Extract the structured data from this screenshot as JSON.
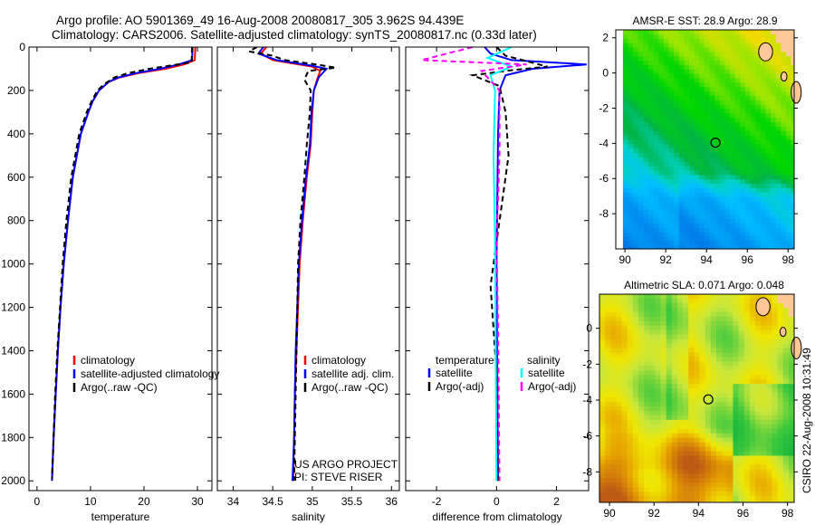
{
  "title": {
    "line1": "Argo profile: AO 5901369_49 16-Aug-2008 20080817_305 3.962S 94.439E",
    "line2": "Climatology: CARS2006. Satellite-adjusted climatology: synTS_20080817.nc (0.33d later)"
  },
  "side_stamp": "CSIRO 22-Aug-2008 10:31:49",
  "colors": {
    "climatology": "#ff0000",
    "satellite": "#0000ff",
    "argo": "#000000",
    "sal_satellite": "#00ffff",
    "sal_argo": "#ff00ff"
  },
  "chart_data": [
    {
      "type": "line",
      "xlabel": "temperature",
      "xlim": [
        -1.5,
        32.7
      ],
      "ylim": [
        0,
        2045
      ],
      "xticks": [
        0,
        10,
        20,
        30
      ],
      "yticks": [
        0,
        200,
        400,
        600,
        800,
        1000,
        1200,
        1400,
        1600,
        1800,
        2000
      ],
      "y_reversed": true,
      "legend": [
        "climatology",
        "satellite-adjusted climatology",
        "Argo(..raw -QC)"
      ],
      "series": [
        {
          "name": "climatology",
          "color": "#ff0000",
          "dash": false,
          "points": [
            [
              29.6,
              0
            ],
            [
              29.5,
              60
            ],
            [
              27.5,
              80
            ],
            [
              24,
              100
            ],
            [
              19,
              120
            ],
            [
              15.5,
              140
            ],
            [
              13.5,
              160
            ],
            [
              11.6,
              200
            ],
            [
              10.4,
              250
            ],
            [
              9.6,
              300
            ],
            [
              8.2,
              400
            ],
            [
              6.7,
              600
            ],
            [
              5.8,
              800
            ],
            [
              5.0,
              1000
            ],
            [
              4.4,
              1200
            ],
            [
              3.9,
              1400
            ],
            [
              3.5,
              1600
            ],
            [
              3.1,
              1800
            ],
            [
              2.8,
              2000
            ]
          ]
        },
        {
          "name": "satellite-adjusted climatology",
          "color": "#0000ff",
          "dash": false,
          "points": [
            [
              29.1,
              0
            ],
            [
              29.0,
              60
            ],
            [
              26.5,
              80
            ],
            [
              23,
              100
            ],
            [
              18.5,
              120
            ],
            [
              15.3,
              140
            ],
            [
              13.4,
              160
            ],
            [
              11.6,
              200
            ],
            [
              10.4,
              250
            ],
            [
              9.6,
              300
            ],
            [
              8.2,
              400
            ],
            [
              6.7,
              600
            ],
            [
              5.8,
              800
            ],
            [
              5.0,
              1000
            ],
            [
              4.4,
              1200
            ],
            [
              3.9,
              1400
            ],
            [
              3.5,
              1600
            ],
            [
              3.1,
              1800
            ],
            [
              2.8,
              2000
            ]
          ]
        },
        {
          "name": "Argo(..raw -QC)",
          "color": "#000000",
          "dash": true,
          "points": [
            [
              29.0,
              0
            ],
            [
              28.9,
              70
            ],
            [
              25,
              85
            ],
            [
              21,
              100
            ],
            [
              17,
              120
            ],
            [
              14.5,
              140
            ],
            [
              12.6,
              170
            ],
            [
              11.3,
              200
            ],
            [
              10.2,
              250
            ],
            [
              9.3,
              300
            ],
            [
              7.9,
              400
            ],
            [
              6.4,
              600
            ],
            [
              5.5,
              800
            ],
            [
              4.8,
              1000
            ],
            [
              4.3,
              1200
            ],
            [
              3.8,
              1400
            ],
            [
              3.4,
              1600
            ],
            [
              3.1,
              1800
            ],
            [
              2.8,
              1990
            ]
          ]
        }
      ]
    },
    {
      "type": "line",
      "xlabel": "salinity",
      "xlim": [
        33.8,
        36.1
      ],
      "ylim": [
        0,
        2045
      ],
      "xticks": [
        34,
        34.5,
        35,
        35.5,
        36
      ],
      "y_reversed": true,
      "legend": [
        "climatology",
        "satellite adj. clim.",
        "Argo(..raw -QC)"
      ],
      "annotations": [
        "US ARGO PROJECT",
        "PI: STEVE RISER"
      ],
      "series": [
        {
          "name": "climatology",
          "color": "#ff0000",
          "dash": false,
          "points": [
            [
              34.42,
              0
            ],
            [
              34.35,
              30
            ],
            [
              34.5,
              60
            ],
            [
              35.0,
              90
            ],
            [
              35.1,
              110
            ],
            [
              35.06,
              150
            ],
            [
              35.02,
              200
            ],
            [
              35.0,
              300
            ],
            [
              34.98,
              450
            ],
            [
              34.93,
              600
            ],
            [
              34.88,
              800
            ],
            [
              34.84,
              1000
            ],
            [
              34.82,
              1200
            ],
            [
              34.8,
              1400
            ],
            [
              34.78,
              1600
            ],
            [
              34.77,
              1800
            ],
            [
              34.76,
              2000
            ]
          ]
        },
        {
          "name": "satellite adj. clim.",
          "color": "#0000ff",
          "dash": false,
          "points": [
            [
              34.38,
              0
            ],
            [
              34.32,
              30
            ],
            [
              34.55,
              60
            ],
            [
              34.98,
              85
            ],
            [
              35.18,
              100
            ],
            [
              35.08,
              140
            ],
            [
              35.02,
              200
            ],
            [
              34.99,
              300
            ],
            [
              34.97,
              450
            ],
            [
              34.92,
              600
            ],
            [
              34.87,
              800
            ],
            [
              34.83,
              1000
            ],
            [
              34.81,
              1200
            ],
            [
              34.79,
              1400
            ],
            [
              34.78,
              1600
            ],
            [
              34.77,
              1800
            ],
            [
              34.75,
              2000
            ]
          ]
        },
        {
          "name": "Argo(..raw -QC)",
          "color": "#000000",
          "dash": true,
          "points": [
            [
              34.3,
              0
            ],
            [
              34.2,
              20
            ],
            [
              34.5,
              40
            ],
            [
              34.65,
              60
            ],
            [
              35.05,
              80
            ],
            [
              35.3,
              95
            ],
            [
              34.95,
              110
            ],
            [
              34.9,
              150
            ],
            [
              34.98,
              200
            ],
            [
              34.97,
              300
            ],
            [
              34.93,
              450
            ],
            [
              34.9,
              600
            ],
            [
              34.85,
              800
            ],
            [
              34.82,
              1000
            ],
            [
              34.81,
              1200
            ],
            [
              34.8,
              1400
            ],
            [
              34.79,
              1600
            ],
            [
              34.78,
              1800
            ],
            [
              34.77,
              2000
            ]
          ]
        }
      ]
    },
    {
      "type": "line",
      "xlabel": "difference from climatology",
      "xlim": [
        -3.03,
        3.07
      ],
      "ylim": [
        0,
        2045
      ],
      "xticks": [
        -2,
        0,
        2
      ],
      "y_reversed": true,
      "legend_left_title": "temperature",
      "legend_right_title": "salinity",
      "legend": [
        "satellite",
        "Argo(-adj)",
        "satellite",
        "Argo(-adj)"
      ],
      "series": [
        {
          "name": "temperature satellite",
          "color": "#0000ff",
          "dash": false,
          "points": [
            [
              -0.4,
              0
            ],
            [
              -0.2,
              30
            ],
            [
              0.5,
              60
            ],
            [
              3.0,
              80
            ],
            [
              1.2,
              100
            ],
            [
              0.3,
              130
            ],
            [
              0.1,
              200
            ],
            [
              0.05,
              400
            ],
            [
              0.0,
              1000
            ],
            [
              0.05,
              2000
            ]
          ]
        },
        {
          "name": "temperature Argo(-adj)",
          "color": "#000000",
          "dash": true,
          "points": [
            [
              0.0,
              0
            ],
            [
              0.3,
              40
            ],
            [
              1.7,
              90
            ],
            [
              0.6,
              105
            ],
            [
              -0.8,
              130
            ],
            [
              0.1,
              180
            ],
            [
              0.3,
              300
            ],
            [
              0.4,
              500
            ],
            [
              0.2,
              700
            ],
            [
              0.0,
              900
            ],
            [
              -0.2,
              1100
            ],
            [
              -0.1,
              1300
            ],
            [
              0.0,
              1500
            ],
            [
              0.05,
              2000
            ]
          ]
        },
        {
          "name": "salinity satellite",
          "color": "#00ffff",
          "dash": false,
          "points": [
            [
              0.5,
              0
            ],
            [
              -0.3,
              50
            ],
            [
              0.5,
              90
            ],
            [
              -0.2,
              130
            ],
            [
              -0.05,
              200
            ],
            [
              -0.1,
              500
            ],
            [
              -0.05,
              900
            ],
            [
              0.0,
              2000
            ]
          ]
        },
        {
          "name": "salinity Argo(-adj)",
          "color": "#ff00ff",
          "dash": true,
          "points": [
            [
              -0.8,
              0
            ],
            [
              -2.5,
              60
            ],
            [
              1.0,
              80
            ],
            [
              -0.5,
              110
            ],
            [
              0.1,
              200
            ],
            [
              0.1,
              500
            ],
            [
              0.0,
              900
            ],
            [
              0.05,
              1300
            ],
            [
              0.1,
              2000
            ]
          ]
        }
      ]
    },
    {
      "type": "heatmap",
      "title": "AMSR-E SST: 28.9 Argo: 28.9",
      "xlim": [
        89.55,
        98.3
      ],
      "ylim": [
        -10,
        2.45
      ],
      "xticks": [
        90,
        92,
        94,
        96,
        98
      ],
      "yticks": [
        2,
        0,
        -2,
        -4,
        -6,
        -8
      ],
      "marker": [
        94.44,
        -3.96
      ]
    },
    {
      "type": "heatmap",
      "title": "Altimetric SLA: 0.071 Argo: 0.048",
      "xlim": [
        89.55,
        98.3
      ],
      "ylim": [
        -9.7,
        1.9
      ],
      "xticks": [
        90,
        92,
        94,
        96,
        98
      ],
      "yticks": [
        0,
        -2,
        -4,
        -6,
        -8
      ],
      "marker": [
        94.44,
        -3.96
      ]
    }
  ]
}
